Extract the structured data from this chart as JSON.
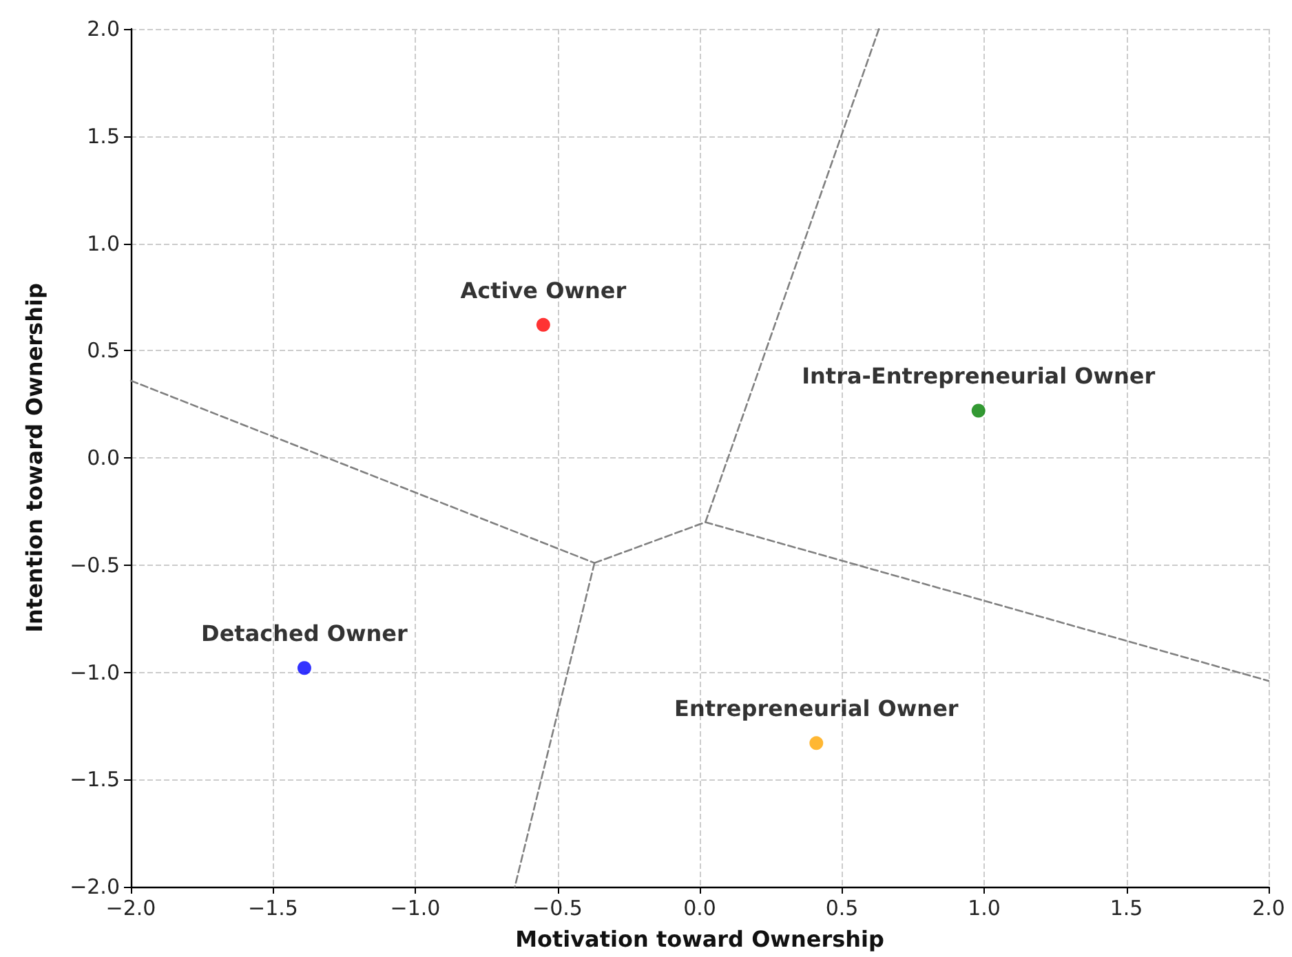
{
  "chart_data": {
    "type": "scatter",
    "xlabel": "Motivation toward Ownership",
    "ylabel": "Intention toward Ownership",
    "xlim": [
      -2,
      2
    ],
    "ylim": [
      -2,
      2
    ],
    "xticks": [
      {
        "value": -2,
        "label": "−2.0"
      },
      {
        "value": -1.5,
        "label": "−1.5"
      },
      {
        "value": -1,
        "label": "−1.0"
      },
      {
        "value": -0.5,
        "label": "−0.5"
      },
      {
        "value": 0,
        "label": "0.0"
      },
      {
        "value": 0.5,
        "label": "0.5"
      },
      {
        "value": 1,
        "label": "1.0"
      },
      {
        "value": 1.5,
        "label": "1.5"
      },
      {
        "value": 2,
        "label": "2.0"
      }
    ],
    "yticks": [
      {
        "value": -2,
        "label": "−2.0"
      },
      {
        "value": -1.5,
        "label": "−1.5"
      },
      {
        "value": -1,
        "label": "−1.0"
      },
      {
        "value": -0.5,
        "label": "−0.5"
      },
      {
        "value": 0,
        "label": "0.0"
      },
      {
        "value": 0.5,
        "label": "0.5"
      },
      {
        "value": 1,
        "label": "1.0"
      },
      {
        "value": 1.5,
        "label": "1.5"
      },
      {
        "value": 2,
        "label": "2.0"
      }
    ],
    "grid": true,
    "legend": false,
    "marker": "circle",
    "series": [
      {
        "name": "Active Owner",
        "color": "#ff0000",
        "x": [
          -0.55
        ],
        "values": [
          0.62
        ]
      },
      {
        "name": "Intra-Entrepreneurial Owner",
        "color": "#008000",
        "x": [
          0.98
        ],
        "values": [
          0.22
        ]
      },
      {
        "name": "Detached Owner",
        "color": "#0000ff",
        "x": [
          -1.39
        ],
        "values": [
          -0.98
        ]
      },
      {
        "name": "Entrepreneurial Owner",
        "color": "#ffa500",
        "x": [
          0.41
        ],
        "values": [
          -1.33
        ]
      },
      {
        "type": "line",
        "color": "#808080",
        "line_style": "dashed",
        "marker": "none",
        "x": [
          -2,
          -0.37
        ],
        "values": [
          0.36,
          -0.49
        ]
      },
      {
        "type": "line",
        "color": "#808080",
        "line_style": "dashed",
        "marker": "none",
        "x": [
          -0.37,
          -0.65
        ],
        "values": [
          -0.49,
          -2
        ]
      },
      {
        "type": "line",
        "color": "#808080",
        "line_style": "dashed",
        "marker": "none",
        "x": [
          -0.37,
          0.02
        ],
        "values": [
          -0.49,
          -0.3
        ]
      },
      {
        "type": "line",
        "color": "#808080",
        "line_style": "dashed",
        "marker": "none",
        "x": [
          0.02,
          0.63
        ],
        "values": [
          -0.3,
          2
        ]
      },
      {
        "type": "line",
        "color": "#808080",
        "line_style": "dashed",
        "marker": "none",
        "x": [
          0.02,
          2
        ],
        "values": [
          -0.3,
          -1.04
        ]
      }
    ]
  }
}
